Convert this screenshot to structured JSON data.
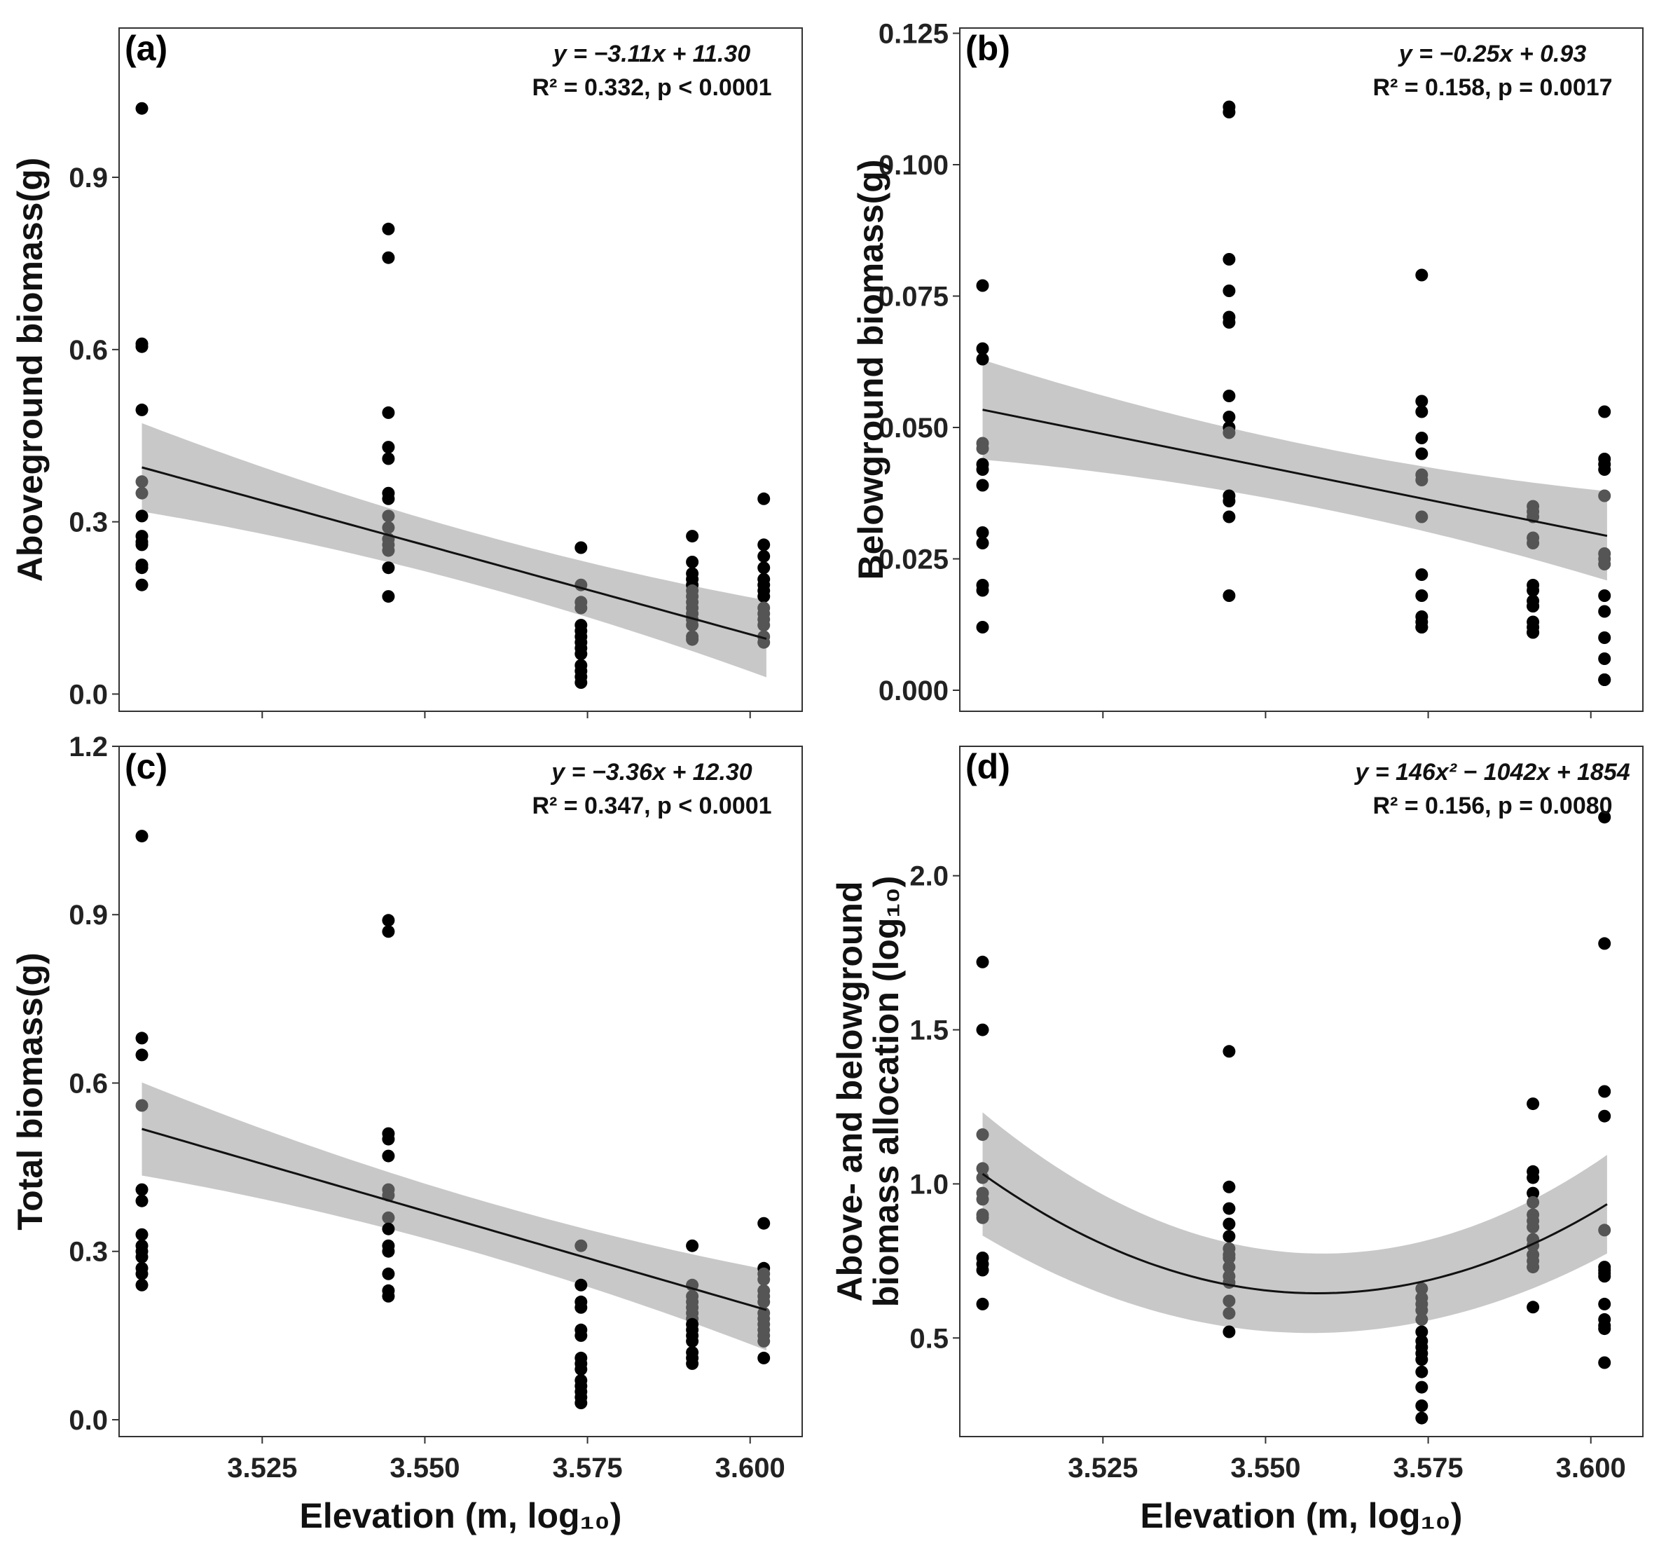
{
  "chart_data": [
    {
      "type": "scatter",
      "panel_label": "(a)",
      "ylabel": "Aboveground biomass(g)",
      "xlabel": "",
      "xlim": [
        3.503,
        3.608
      ],
      "ylim": [
        -0.03,
        1.16
      ],
      "xticks": [
        3.525,
        3.55,
        3.575,
        3.6
      ],
      "xtick_labels": [],
      "yticks": [
        0.0,
        0.3,
        0.6,
        0.9
      ],
      "ytick_labels": [
        "0.0",
        "0.3",
        "0.6",
        "0.9"
      ],
      "equation": "y = −3.11x + 11.30",
      "stats": "R² = 0.332, p < 0.0001",
      "fit": {
        "kind": "linear",
        "a": -3.11,
        "b": 11.3,
        "band": [
          0.077,
          0.045,
          0.067
        ],
        "x_range": [
          3.5065,
          3.6025
        ]
      },
      "points": {
        "x": [
          3.5065,
          3.5065,
          3.5065,
          3.5065,
          3.5065,
          3.5065,
          3.5065,
          3.5065,
          3.5065,
          3.5065,
          3.5065,
          3.5065,
          3.5065,
          3.5444,
          3.5444,
          3.5444,
          3.5444,
          3.5444,
          3.5444,
          3.5444,
          3.5444,
          3.5444,
          3.5444,
          3.5444,
          3.5444,
          3.5444,
          3.5444,
          3.574,
          3.574,
          3.574,
          3.574,
          3.574,
          3.574,
          3.574,
          3.574,
          3.574,
          3.574,
          3.574,
          3.574,
          3.574,
          3.574,
          3.5911,
          3.5911,
          3.5911,
          3.5911,
          3.5911,
          3.5911,
          3.5911,
          3.5911,
          3.5911,
          3.5911,
          3.5911,
          3.5911,
          3.5911,
          3.5911,
          3.6021,
          3.6021,
          3.6021,
          3.6021,
          3.6021,
          3.6021,
          3.6021,
          3.6021,
          3.6021,
          3.6021,
          3.6021,
          3.6021,
          3.6021,
          3.6021
        ],
        "y": [
          1.02,
          0.61,
          0.605,
          0.495,
          0.37,
          0.35,
          0.31,
          0.275,
          0.265,
          0.26,
          0.225,
          0.22,
          0.19,
          0.81,
          0.76,
          0.49,
          0.43,
          0.41,
          0.35,
          0.34,
          0.31,
          0.29,
          0.27,
          0.26,
          0.25,
          0.22,
          0.17,
          0.255,
          0.19,
          0.16,
          0.15,
          0.12,
          0.11,
          0.1,
          0.09,
          0.08,
          0.07,
          0.05,
          0.04,
          0.03,
          0.02,
          0.275,
          0.23,
          0.21,
          0.2,
          0.19,
          0.18,
          0.17,
          0.16,
          0.15,
          0.14,
          0.13,
          0.12,
          0.1,
          0.095,
          0.34,
          0.26,
          0.24,
          0.22,
          0.2,
          0.19,
          0.18,
          0.17,
          0.15,
          0.14,
          0.13,
          0.12,
          0.1,
          0.09
        ]
      }
    },
    {
      "type": "scatter",
      "panel_label": "(b)",
      "ylabel": "Belowground biomass(g)",
      "xlabel": "",
      "xlim": [
        3.503,
        3.608
      ],
      "ylim": [
        -0.004,
        0.126
      ],
      "xticks": [
        3.525,
        3.55,
        3.575,
        3.6
      ],
      "xtick_labels": [],
      "yticks": [
        0.0,
        0.025,
        0.05,
        0.075,
        0.1,
        0.125
      ],
      "ytick_labels": [
        "0.000",
        "0.025",
        "0.050",
        "0.075",
        "0.100",
        "0.125"
      ],
      "equation": "y = −0.25x + 0.93",
      "stats": "R² = 0.158, p = 0.0017",
      "fit": {
        "kind": "linear",
        "a": -0.25,
        "b": 0.93,
        "band": [
          0.0095,
          0.0058,
          0.0085
        ],
        "x_range": [
          3.5065,
          3.6025
        ]
      },
      "points": {
        "x": [
          3.5065,
          3.5065,
          3.5065,
          3.5065,
          3.5065,
          3.5065,
          3.5065,
          3.5065,
          3.5065,
          3.5065,
          3.5065,
          3.5065,
          3.5065,
          3.5444,
          3.5444,
          3.5444,
          3.5444,
          3.5444,
          3.5444,
          3.5444,
          3.5444,
          3.5444,
          3.5444,
          3.5444,
          3.5444,
          3.5444,
          3.5444,
          3.574,
          3.574,
          3.574,
          3.574,
          3.574,
          3.574,
          3.574,
          3.574,
          3.574,
          3.574,
          3.574,
          3.574,
          3.574,
          3.574,
          3.5911,
          3.5911,
          3.5911,
          3.5911,
          3.5911,
          3.5911,
          3.5911,
          3.5911,
          3.5911,
          3.5911,
          3.5911,
          3.5911,
          3.5911,
          3.5911,
          3.6021,
          3.6021,
          3.6021,
          3.6021,
          3.6021,
          3.6021,
          3.6021,
          3.6021,
          3.6021,
          3.6021,
          3.6021,
          3.6021,
          3.6021,
          3.6021
        ],
        "y": [
          0.077,
          0.065,
          0.063,
          0.047,
          0.046,
          0.043,
          0.042,
          0.039,
          0.03,
          0.028,
          0.02,
          0.019,
          0.012,
          0.111,
          0.11,
          0.082,
          0.076,
          0.071,
          0.07,
          0.056,
          0.052,
          0.05,
          0.049,
          0.037,
          0.036,
          0.033,
          0.018,
          0.079,
          0.055,
          0.053,
          0.048,
          0.045,
          0.041,
          0.04,
          0.033,
          0.022,
          0.018,
          0.014,
          0.013,
          0.012,
          0.012,
          0.035,
          0.034,
          0.033,
          0.029,
          0.028,
          0.02,
          0.019,
          0.017,
          0.016,
          0.016,
          0.013,
          0.012,
          0.011,
          0.011,
          0.053,
          0.044,
          0.043,
          0.042,
          0.037,
          0.026,
          0.025,
          0.024,
          0.018,
          0.015,
          0.01,
          0.006,
          0.002,
          0.002
        ]
      }
    },
    {
      "type": "scatter",
      "panel_label": "(c)",
      "ylabel": "Total biomass(g)",
      "xlabel": "Elevation (m, log₁₀)",
      "xlim": [
        3.503,
        3.608
      ],
      "ylim": [
        -0.03,
        1.2
      ],
      "xticks": [
        3.525,
        3.55,
        3.575,
        3.6
      ],
      "xtick_labels": [
        "3.525",
        "3.550",
        "3.575",
        "3.600"
      ],
      "yticks": [
        0.0,
        0.3,
        0.6,
        0.9,
        1.2
      ],
      "ytick_labels": [
        "0.0",
        "0.3",
        "0.6",
        "0.9",
        "1.2"
      ],
      "equation": "y = −3.36x + 12.30",
      "stats": "R² = 0.347, p < 0.0001",
      "fit": {
        "kind": "linear",
        "a": -3.36,
        "b": 12.3,
        "band": [
          0.083,
          0.048,
          0.072
        ],
        "x_range": [
          3.5065,
          3.6025
        ]
      },
      "points": {
        "x": [
          3.5065,
          3.5065,
          3.5065,
          3.5065,
          3.5065,
          3.5065,
          3.5065,
          3.5065,
          3.5065,
          3.5065,
          3.5065,
          3.5065,
          3.5065,
          3.5444,
          3.5444,
          3.5444,
          3.5444,
          3.5444,
          3.5444,
          3.5444,
          3.5444,
          3.5444,
          3.5444,
          3.5444,
          3.5444,
          3.5444,
          3.5444,
          3.574,
          3.574,
          3.574,
          3.574,
          3.574,
          3.574,
          3.574,
          3.574,
          3.574,
          3.574,
          3.574,
          3.574,
          3.574,
          3.574,
          3.5911,
          3.5911,
          3.5911,
          3.5911,
          3.5911,
          3.5911,
          3.5911,
          3.5911,
          3.5911,
          3.5911,
          3.5911,
          3.5911,
          3.5911,
          3.5911,
          3.6021,
          3.6021,
          3.6021,
          3.6021,
          3.6021,
          3.6021,
          3.6021,
          3.6021,
          3.6021,
          3.6021,
          3.6021,
          3.6021,
          3.6021,
          3.6021
        ],
        "y": [
          1.04,
          0.68,
          0.65,
          0.56,
          0.41,
          0.39,
          0.33,
          0.31,
          0.3,
          0.29,
          0.27,
          0.26,
          0.24,
          0.89,
          0.87,
          0.51,
          0.5,
          0.47,
          0.41,
          0.4,
          0.36,
          0.34,
          0.31,
          0.3,
          0.26,
          0.23,
          0.22,
          0.31,
          0.24,
          0.21,
          0.2,
          0.16,
          0.15,
          0.11,
          0.1,
          0.09,
          0.07,
          0.06,
          0.05,
          0.04,
          0.03,
          0.31,
          0.24,
          0.22,
          0.21,
          0.2,
          0.19,
          0.18,
          0.17,
          0.16,
          0.15,
          0.14,
          0.12,
          0.11,
          0.1,
          0.35,
          0.27,
          0.26,
          0.25,
          0.23,
          0.22,
          0.21,
          0.19,
          0.18,
          0.17,
          0.16,
          0.15,
          0.14,
          0.11
        ]
      }
    },
    {
      "type": "scatter",
      "panel_label": "(d)",
      "ylabel": "Above- and belowground",
      "ylabel2": "biomass allocation  (log₁₀)",
      "xlabel": "Elevation (m, log₁₀)",
      "xlim": [
        3.503,
        3.608
      ],
      "ylim": [
        0.18,
        2.42
      ],
      "xticks": [
        3.525,
        3.55,
        3.575,
        3.6
      ],
      "xtick_labels": [
        "3.525",
        "3.550",
        "3.575",
        "3.600"
      ],
      "yticks": [
        0.5,
        1.0,
        1.5,
        2.0
      ],
      "ytick_labels": [
        "0.5",
        "1.0",
        "1.5",
        "2.0"
      ],
      "equation": "y = 146x² − 1042x + 1854",
      "stats": "R² = 0.156, p = 0.0080",
      "fit": {
        "kind": "quadratic",
        "vertex_x": 3.558,
        "vertex_y": 0.645,
        "curvature": 146,
        "band": [
          0.2,
          0.13,
          0.16
        ],
        "x_range": [
          3.5065,
          3.6025
        ]
      },
      "points": {
        "x": [
          3.5065,
          3.5065,
          3.5065,
          3.5065,
          3.5065,
          3.5065,
          3.5065,
          3.5065,
          3.5065,
          3.5065,
          3.5065,
          3.5065,
          3.5065,
          3.5444,
          3.5444,
          3.5444,
          3.5444,
          3.5444,
          3.5444,
          3.5444,
          3.5444,
          3.5444,
          3.5444,
          3.5444,
          3.5444,
          3.5444,
          3.5444,
          3.574,
          3.574,
          3.574,
          3.574,
          3.574,
          3.574,
          3.574,
          3.574,
          3.574,
          3.574,
          3.574,
          3.574,
          3.574,
          3.574,
          3.5911,
          3.5911,
          3.5911,
          3.5911,
          3.5911,
          3.5911,
          3.5911,
          3.5911,
          3.5911,
          3.5911,
          3.5911,
          3.5911,
          3.5911,
          3.5911,
          3.6021,
          3.6021,
          3.6021,
          3.6021,
          3.6021,
          3.6021,
          3.6021,
          3.6021,
          3.6021,
          3.6021,
          3.6021,
          3.6021,
          3.6021,
          3.6021
        ],
        "y": [
          1.72,
          1.5,
          1.16,
          1.05,
          1.02,
          0.97,
          0.95,
          0.9,
          0.89,
          0.76,
          0.74,
          0.72,
          0.61,
          1.43,
          0.99,
          0.92,
          0.87,
          0.83,
          0.79,
          0.77,
          0.76,
          0.73,
          0.7,
          0.68,
          0.62,
          0.58,
          0.52,
          0.66,
          0.63,
          0.61,
          0.59,
          0.56,
          0.52,
          0.49,
          0.47,
          0.45,
          0.43,
          0.39,
          0.34,
          0.28,
          0.24,
          1.26,
          1.04,
          1.02,
          0.97,
          0.94,
          0.9,
          0.88,
          0.86,
          0.82,
          0.8,
          0.77,
          0.75,
          0.73,
          0.6,
          2.19,
          1.78,
          1.3,
          1.22,
          0.85,
          0.73,
          0.72,
          0.71,
          0.7,
          0.61,
          0.56,
          0.54,
          0.53,
          0.42
        ]
      }
    }
  ]
}
